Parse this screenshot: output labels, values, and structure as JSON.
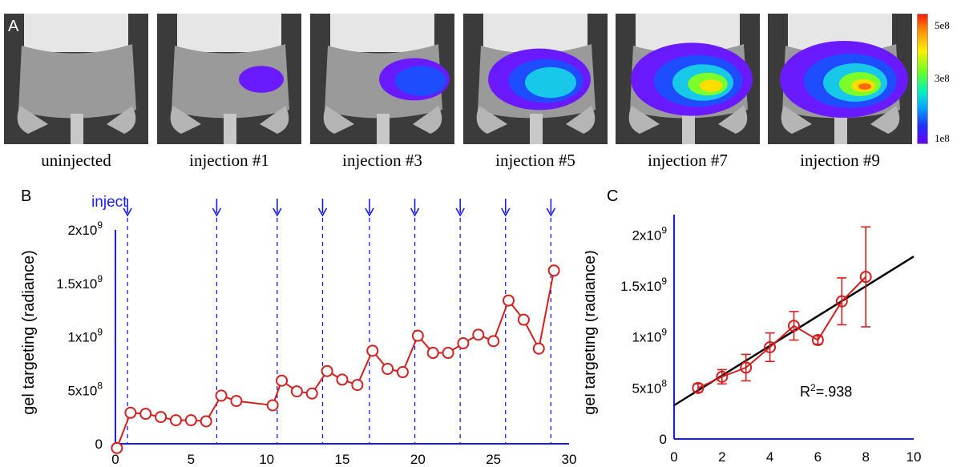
{
  "panel_a": {
    "letter": "A",
    "images": [
      {
        "caption": "uninjected",
        "signal": 0
      },
      {
        "caption": "injection #1",
        "signal": 1
      },
      {
        "caption": "injection #3",
        "signal": 2
      },
      {
        "caption": "injection #5",
        "signal": 3
      },
      {
        "caption": "injection #7",
        "signal": 4
      },
      {
        "caption": "injection #9",
        "signal": 5
      }
    ],
    "colorbar": {
      "labels": [
        "5e8",
        "3e8",
        "1e8"
      ]
    }
  },
  "chart_data": [
    {
      "type": "line",
      "panel": "B",
      "ylabel": "gel targeting (radiance)",
      "xlabel": "",
      "xlim": [
        0,
        30
      ],
      "ylim": [
        0,
        2000000000
      ],
      "xticks": [
        "0",
        "5",
        "10",
        "15",
        "20",
        "25",
        "30"
      ],
      "yticks": [
        {
          "value": 0,
          "base": "0",
          "exp": ""
        },
        {
          "value": 500000000,
          "base": "5x10",
          "exp": "8"
        },
        {
          "value": 1000000000,
          "base": "1x10",
          "exp": "9"
        },
        {
          "value": 1500000000,
          "base": "1.5x10",
          "exp": "9"
        },
        {
          "value": 2000000000,
          "base": "2x10",
          "exp": "9"
        }
      ],
      "inject_label": "inject",
      "injection_days": [
        0.8,
        6.7,
        10.7,
        13.7,
        16.8,
        19.8,
        22.8,
        25.8,
        28.8
      ],
      "series": [
        {
          "x": [
            0.1,
            1,
            2,
            3,
            4,
            5,
            6,
            7,
            8,
            10.4,
            11,
            12,
            13,
            14,
            15,
            16,
            17,
            18,
            19,
            20,
            21,
            22,
            23,
            24,
            25,
            26,
            27,
            28,
            29
          ],
          "y": [
            -40000000,
            290000000,
            280000000,
            250000000,
            220000000,
            220000000,
            210000000,
            450000000,
            400000000,
            360000000,
            590000000,
            490000000,
            470000000,
            680000000,
            600000000,
            550000000,
            870000000,
            700000000,
            670000000,
            1010000000,
            850000000,
            850000000,
            940000000,
            1020000000,
            960000000,
            1340000000,
            1160000000,
            890000000,
            1620000000
          ]
        }
      ],
      "colors": {
        "series": "#d21f1f",
        "axes": "#1a1aff",
        "inject": "#1a1aff"
      }
    },
    {
      "type": "line",
      "panel": "C",
      "ylabel": "gel targeting (radiance)",
      "xlabel": "",
      "xlim": [
        0,
        10
      ],
      "ylim": [
        0,
        2200000000
      ],
      "xticks": [
        "0",
        "2",
        "4",
        "6",
        "8",
        "10"
      ],
      "yticks": [
        {
          "value": 0,
          "base": "0",
          "exp": ""
        },
        {
          "value": 500000000,
          "base": "5x10",
          "exp": "8"
        },
        {
          "value": 1000000000,
          "base": "1x10",
          "exp": "9"
        },
        {
          "value": 1500000000,
          "base": "1.5x10",
          "exp": "9"
        },
        {
          "value": 2000000000,
          "base": "2x10",
          "exp": "9"
        }
      ],
      "series": [
        {
          "x": [
            1,
            2,
            3,
            4,
            5,
            6,
            7,
            8
          ],
          "y": [
            500000000,
            610000000,
            700000000,
            900000000,
            1110000000,
            970000000,
            1350000000,
            1590000000
          ],
          "err": [
            40000000,
            70000000,
            130000000,
            140000000,
            140000000,
            40000000,
            230000000,
            490000000
          ]
        }
      ],
      "fit": {
        "x": [
          0,
          10
        ],
        "y": [
          330000000,
          1790000000
        ]
      },
      "annotation": {
        "base": "R",
        "sup": "2",
        "rest": "=.938"
      },
      "colors": {
        "series": "#d21f1f",
        "axes": "#1a1aff",
        "fit": "#000000"
      }
    }
  ]
}
